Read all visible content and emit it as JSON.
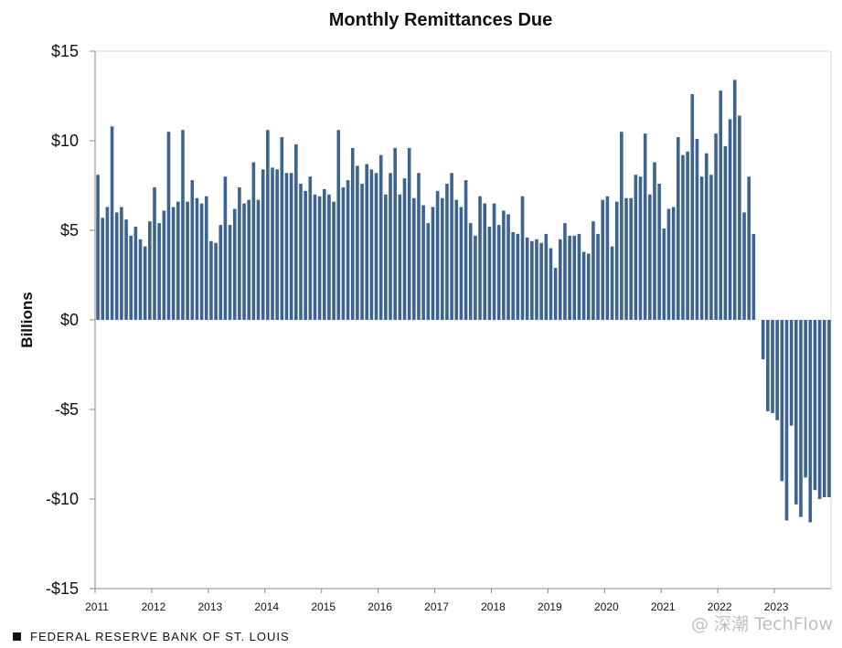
{
  "chart_data": {
    "type": "bar",
    "title": "Monthly Remittances Due",
    "ylabel": "Billions",
    "xlabel": "",
    "ylim": [
      -15,
      15
    ],
    "y_ticks": [
      "$15",
      "$10",
      "$5",
      "$0",
      "-$5",
      "-$10",
      "-$15"
    ],
    "y_tick_values": [
      15,
      10,
      5,
      0,
      -5,
      -10,
      -15
    ],
    "x_ticks": [
      "2011",
      "2012",
      "2013",
      "2014",
      "2015",
      "2016",
      "2017",
      "2018",
      "2019",
      "2020",
      "2021",
      "2022",
      "2023"
    ],
    "x_range": [
      "2011-01",
      "2023-12"
    ],
    "bar_color": "#3d6490",
    "grid": false,
    "legend": "none",
    "series": [
      {
        "x": [
          "2011-01",
          "2011-02",
          "2011-03",
          "2011-04",
          "2011-05",
          "2011-06",
          "2011-07",
          "2011-08",
          "2011-09",
          "2011-10",
          "2011-11",
          "2011-12",
          "2012-01",
          "2012-02",
          "2012-03",
          "2012-04",
          "2012-05",
          "2012-06",
          "2012-07",
          "2012-08",
          "2012-09",
          "2012-10",
          "2012-11",
          "2012-12",
          "2013-01",
          "2013-02",
          "2013-03",
          "2013-04",
          "2013-05",
          "2013-06",
          "2013-07",
          "2013-08",
          "2013-09",
          "2013-10",
          "2013-11",
          "2013-12",
          "2014-01",
          "2014-02",
          "2014-03",
          "2014-04",
          "2014-05",
          "2014-06",
          "2014-07",
          "2014-08",
          "2014-09",
          "2014-10",
          "2014-11",
          "2014-12",
          "2015-01",
          "2015-02",
          "2015-03",
          "2015-04",
          "2015-05",
          "2015-06",
          "2015-07",
          "2015-08",
          "2015-09",
          "2015-10",
          "2015-11",
          "2015-12",
          "2016-01",
          "2016-02",
          "2016-03",
          "2016-04",
          "2016-05",
          "2016-06",
          "2016-07",
          "2016-08",
          "2016-09",
          "2016-10",
          "2016-11",
          "2016-12",
          "2017-01",
          "2017-02",
          "2017-03",
          "2017-04",
          "2017-05",
          "2017-06",
          "2017-07",
          "2017-08",
          "2017-09",
          "2017-10",
          "2017-11",
          "2017-12",
          "2018-01",
          "2018-02",
          "2018-03",
          "2018-04",
          "2018-05",
          "2018-06",
          "2018-07",
          "2018-08",
          "2018-09",
          "2018-10",
          "2018-11",
          "2018-12",
          "2019-01",
          "2019-02",
          "2019-03",
          "2019-04",
          "2019-05",
          "2019-06",
          "2019-07",
          "2019-08",
          "2019-09",
          "2019-10",
          "2019-11",
          "2019-12",
          "2020-01",
          "2020-02",
          "2020-03",
          "2020-04",
          "2020-05",
          "2020-06",
          "2020-07",
          "2020-08",
          "2020-09",
          "2020-10",
          "2020-11",
          "2020-12",
          "2021-01",
          "2021-02",
          "2021-03",
          "2021-04",
          "2021-05",
          "2021-06",
          "2021-07",
          "2021-08",
          "2021-09",
          "2021-10",
          "2021-11",
          "2021-12",
          "2022-01",
          "2022-02",
          "2022-03",
          "2022-04",
          "2022-05",
          "2022-06",
          "2022-07",
          "2022-08",
          "2022-09",
          "2022-10",
          "2022-11",
          "2022-12",
          "2023-01",
          "2023-02",
          "2023-03",
          "2023-04",
          "2023-05",
          "2023-06",
          "2023-07",
          "2023-08",
          "2023-09",
          "2023-10",
          "2023-11",
          "2023-12"
        ],
        "values": [
          8.1,
          5.7,
          6.3,
          10.8,
          6.0,
          6.3,
          5.6,
          4.7,
          5.2,
          4.5,
          4.1,
          5.5,
          7.4,
          5.4,
          6.1,
          10.5,
          6.3,
          6.6,
          10.6,
          6.6,
          7.8,
          6.8,
          6.5,
          6.9,
          4.4,
          4.3,
          5.3,
          8.0,
          5.3,
          6.2,
          7.4,
          6.5,
          6.7,
          8.8,
          6.7,
          8.4,
          10.6,
          8.5,
          8.4,
          10.2,
          8.2,
          8.2,
          9.8,
          7.6,
          7.2,
          8.0,
          7.0,
          6.9,
          7.3,
          7.0,
          6.6,
          10.6,
          7.4,
          7.8,
          9.6,
          8.6,
          7.6,
          8.7,
          8.4,
          8.2,
          9.2,
          7.0,
          8.2,
          9.6,
          7.0,
          7.9,
          9.6,
          6.8,
          8.2,
          6.4,
          5.4,
          6.3,
          7.2,
          6.8,
          7.6,
          8.2,
          6.7,
          6.3,
          7.8,
          5.4,
          4.7,
          6.9,
          6.5,
          5.2,
          6.5,
          5.3,
          6.1,
          5.9,
          4.9,
          4.8,
          6.9,
          4.6,
          4.4,
          4.5,
          4.3,
          4.8,
          4.0,
          2.9,
          4.5,
          5.4,
          4.7,
          4.7,
          4.8,
          3.8,
          3.7,
          5.5,
          4.8,
          6.7,
          6.9,
          4.1,
          6.6,
          10.5,
          6.8,
          6.8,
          8.1,
          8.0,
          10.4,
          7.0,
          8.8,
          7.6,
          5.1,
          6.2,
          6.3,
          10.2,
          9.2,
          9.4,
          12.6,
          10.1,
          8.0,
          9.3,
          8.1,
          10.4,
          12.8,
          9.7,
          11.2,
          13.4,
          11.4,
          6.0,
          8.0,
          4.8,
          0,
          -2.2,
          -5.1,
          -5.2,
          -5.6,
          -9.0,
          -11.2,
          -5.9,
          -10.3,
          -11.0,
          -8.8,
          -11.3,
          -9.5,
          -10.0,
          -9.9,
          -9.9
        ]
      }
    ]
  },
  "footer": {
    "source_label": "FEDERAL RESERVE BANK OF ST. LOUIS",
    "watermark": "@ 深潮 TechFlow"
  }
}
